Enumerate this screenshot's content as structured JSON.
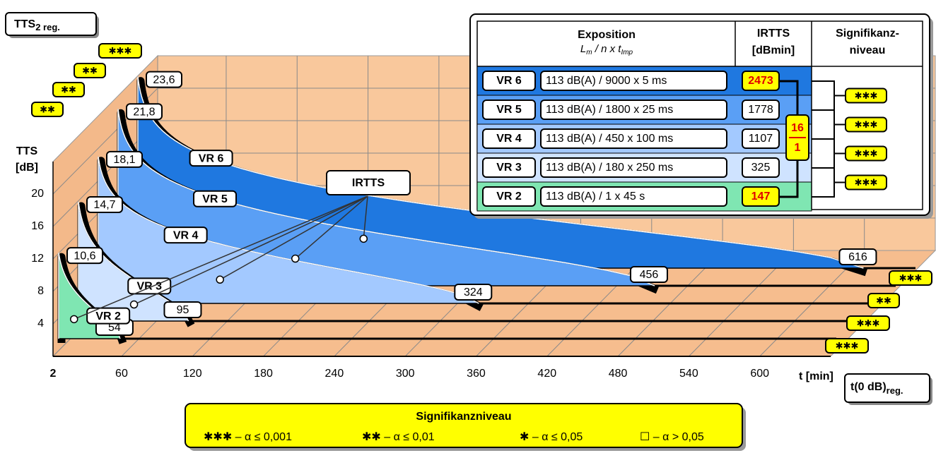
{
  "chart_data": {
    "type": "recovery3d",
    "title": "TTS",
    "title_sub": "2 reg.",
    "y_label": [
      "TTS",
      "[dB]"
    ],
    "x_label": "t [min]",
    "end_label": "t(0 dB)",
    "end_label_sub": "reg.",
    "xlim": [
      2,
      660
    ],
    "ylim": [
      0,
      24
    ],
    "xticks": [
      2,
      60,
      120,
      180,
      240,
      300,
      360,
      420,
      480,
      540,
      600
    ],
    "yticks": [
      4,
      8,
      12,
      16,
      20
    ],
    "series": [
      {
        "name": "VR 2",
        "color": "#7fe6b2",
        "values": [
          10.6
        ],
        "value_labels": [
          "10,6"
        ],
        "end_time": 54
      },
      {
        "name": "VR 3",
        "color": "#cfe3ff",
        "values": [
          14.7
        ],
        "value_labels": [
          "14,7"
        ],
        "end_time": 95
      },
      {
        "name": "VR 4",
        "color": "#a3c9ff",
        "values": [
          18.1
        ],
        "value_labels": [
          "18,1"
        ],
        "end_time": 324
      },
      {
        "name": "VR 5",
        "color": "#5a9ff5",
        "values": [
          21.8
        ],
        "value_labels": [
          "21,8"
        ],
        "end_time": 456
      },
      {
        "name": "VR 6",
        "color": "#1f78e0",
        "values": [
          23.6
        ],
        "value_labels": [
          "23,6"
        ],
        "end_time": 616
      }
    ],
    "left_significance": [
      "✱✱",
      "✱✱",
      "✱✱",
      "✱✱✱"
    ],
    "right_significance": [
      "✱✱✱",
      "✱✱✱",
      "✱✱",
      "✱✱✱"
    ],
    "callout": "IRTTS"
  },
  "table": {
    "header": {
      "exposition": "Exposition",
      "formula": [
        "L",
        "m",
        " / n x t",
        "Imp"
      ],
      "irtts": [
        "IRTTS",
        "[dBmin]"
      ],
      "significance": [
        "Signifikanz-",
        "niveau"
      ]
    },
    "rows": [
      {
        "label": "VR 6",
        "exposition": "113 dB(A) / 9000 x 5 ms",
        "irtts": 2473,
        "highlight": true,
        "color": "#1f78e0"
      },
      {
        "label": "VR 5",
        "exposition": "113 dB(A) / 1800 x 25 ms",
        "irtts": 1778,
        "highlight": false,
        "color": "#5a9ff5"
      },
      {
        "label": "VR 4",
        "exposition": "113 dB(A) / 450 x 100 ms",
        "irtts": 1107,
        "highlight": false,
        "color": "#a3c9ff"
      },
      {
        "label": "VR 3",
        "exposition": "113 dB(A) / 180 x 250 ms",
        "irtts": 325,
        "highlight": false,
        "color": "#cfe3ff"
      },
      {
        "label": "VR 2",
        "exposition": "113 dB(A) / 1 x 45 s",
        "irtts": 147,
        "highlight": true,
        "color": "#7fe6b2"
      }
    ],
    "ratio": [
      "16",
      "1"
    ],
    "significance": [
      "✱✱✱",
      "✱✱✱",
      "✱✱✱",
      "✱✱✱"
    ]
  },
  "legend": {
    "title": "Signifikanzniveau",
    "items": [
      "✱✱✱ – α ≤ 0,001",
      "✱✱ – α ≤ 0,01",
      "✱ – α ≤ 0,05",
      "☐ – α > 0,05"
    ]
  }
}
